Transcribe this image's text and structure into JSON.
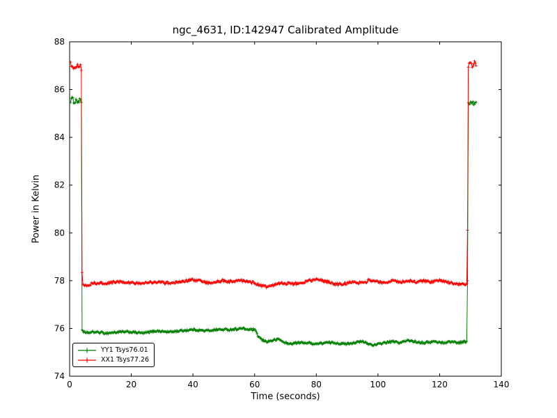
{
  "chart_data": {
    "type": "line",
    "title": "ngc_4631, ID:142947 Calibrated Amplitude",
    "xlabel": "Time (seconds)",
    "ylabel": "Power in Kelvin",
    "xlim": [
      0,
      140
    ],
    "ylim": [
      74,
      88
    ],
    "xticks": [
      0,
      20,
      40,
      60,
      80,
      100,
      120,
      140
    ],
    "yticks": [
      74,
      76,
      78,
      80,
      82,
      84,
      86,
      88
    ],
    "grid": false,
    "marker": "+",
    "legend_position": "lower-left",
    "background_color": "#ffffff",
    "axes_color": "#000000",
    "series": [
      {
        "name": "YY1 Tsys76.01",
        "color": "#008000",
        "tsys": 76.01,
        "points": [
          [
            0.3,
            85.55
          ],
          [
            0.8,
            85.6
          ],
          [
            1.5,
            85.5
          ],
          [
            2.2,
            85.55
          ],
          [
            3.0,
            85.5
          ],
          [
            3.6,
            85.55
          ],
          [
            3.85,
            85.5
          ],
          [
            4.0,
            75.95
          ],
          [
            5,
            75.8
          ],
          [
            8,
            75.85
          ],
          [
            12,
            75.8
          ],
          [
            16,
            75.85
          ],
          [
            20,
            75.85
          ],
          [
            24,
            75.8
          ],
          [
            28,
            75.9
          ],
          [
            32,
            75.85
          ],
          [
            36,
            75.9
          ],
          [
            40,
            75.95
          ],
          [
            44,
            75.9
          ],
          [
            48,
            75.95
          ],
          [
            52,
            75.95
          ],
          [
            56,
            76.0
          ],
          [
            58,
            75.95
          ],
          [
            60,
            75.95
          ],
          [
            61,
            75.7
          ],
          [
            62.5,
            75.5
          ],
          [
            64,
            75.45
          ],
          [
            66,
            75.5
          ],
          [
            68,
            75.55
          ],
          [
            69,
            75.45
          ],
          [
            71,
            75.35
          ],
          [
            74,
            75.4
          ],
          [
            77,
            75.4
          ],
          [
            80,
            75.35
          ],
          [
            83,
            75.4
          ],
          [
            86,
            75.4
          ],
          [
            89,
            75.35
          ],
          [
            92,
            75.4
          ],
          [
            95,
            75.45
          ],
          [
            97,
            75.35
          ],
          [
            99,
            75.3
          ],
          [
            102,
            75.4
          ],
          [
            105,
            75.45
          ],
          [
            107,
            75.4
          ],
          [
            110,
            75.5
          ],
          [
            112,
            75.45
          ],
          [
            115,
            75.4
          ],
          [
            118,
            75.45
          ],
          [
            121,
            75.4
          ],
          [
            124,
            75.45
          ],
          [
            126,
            75.4
          ],
          [
            128,
            75.45
          ],
          [
            129.0,
            75.45
          ],
          [
            129.2,
            85.4
          ],
          [
            129.8,
            85.45
          ],
          [
            130.5,
            85.4
          ],
          [
            131.2,
            85.45
          ],
          [
            131.8,
            85.4
          ]
        ],
        "noise_segments": [
          [
            0,
            4,
            0.1
          ],
          [
            4,
            129,
            0.045
          ],
          [
            129,
            132,
            0.1
          ]
        ]
      },
      {
        "name": "XX1 Tsys77.26",
        "color": "#ff0000",
        "tsys": 77.26,
        "points": [
          [
            0.3,
            87.15
          ],
          [
            0.9,
            87.0
          ],
          [
            1.6,
            86.95
          ],
          [
            2.3,
            87.05
          ],
          [
            3.0,
            86.95
          ],
          [
            3.6,
            87.0
          ],
          [
            3.8,
            86.9
          ],
          [
            3.95,
            79.3
          ],
          [
            4.1,
            77.85
          ],
          [
            5,
            77.8
          ],
          [
            8,
            77.9
          ],
          [
            12,
            77.9
          ],
          [
            16,
            77.95
          ],
          [
            20,
            77.9
          ],
          [
            24,
            77.9
          ],
          [
            28,
            77.95
          ],
          [
            32,
            77.9
          ],
          [
            36,
            77.95
          ],
          [
            40,
            78.05
          ],
          [
            43,
            77.95
          ],
          [
            46,
            77.9
          ],
          [
            49,
            78.0
          ],
          [
            52,
            77.95
          ],
          [
            55,
            78.0
          ],
          [
            58,
            77.95
          ],
          [
            60,
            77.9
          ],
          [
            62,
            77.8
          ],
          [
            64,
            77.75
          ],
          [
            66,
            77.8
          ],
          [
            68,
            77.9
          ],
          [
            70,
            77.9
          ],
          [
            72,
            77.85
          ],
          [
            75,
            77.9
          ],
          [
            78,
            78.0
          ],
          [
            80,
            78.05
          ],
          [
            82,
            78.0
          ],
          [
            84,
            77.95
          ],
          [
            86,
            77.85
          ],
          [
            88,
            77.85
          ],
          [
            90,
            77.9
          ],
          [
            92,
            77.95
          ],
          [
            95,
            77.9
          ],
          [
            97,
            78.0
          ],
          [
            100,
            77.95
          ],
          [
            102,
            77.9
          ],
          [
            105,
            78.0
          ],
          [
            107,
            77.95
          ],
          [
            110,
            78.0
          ],
          [
            112,
            77.95
          ],
          [
            115,
            78.0
          ],
          [
            117,
            77.95
          ],
          [
            120,
            78.0
          ],
          [
            122,
            77.95
          ],
          [
            124,
            77.9
          ],
          [
            126,
            77.85
          ],
          [
            128,
            77.85
          ],
          [
            129.0,
            77.9
          ],
          [
            129.2,
            87.0
          ],
          [
            129.8,
            87.05
          ],
          [
            130.5,
            87.0
          ],
          [
            131.2,
            87.1
          ],
          [
            131.8,
            87.0
          ]
        ],
        "noise_segments": [
          [
            0,
            4,
            0.12
          ],
          [
            4,
            129,
            0.055
          ],
          [
            129,
            132,
            0.12
          ]
        ]
      }
    ]
  }
}
